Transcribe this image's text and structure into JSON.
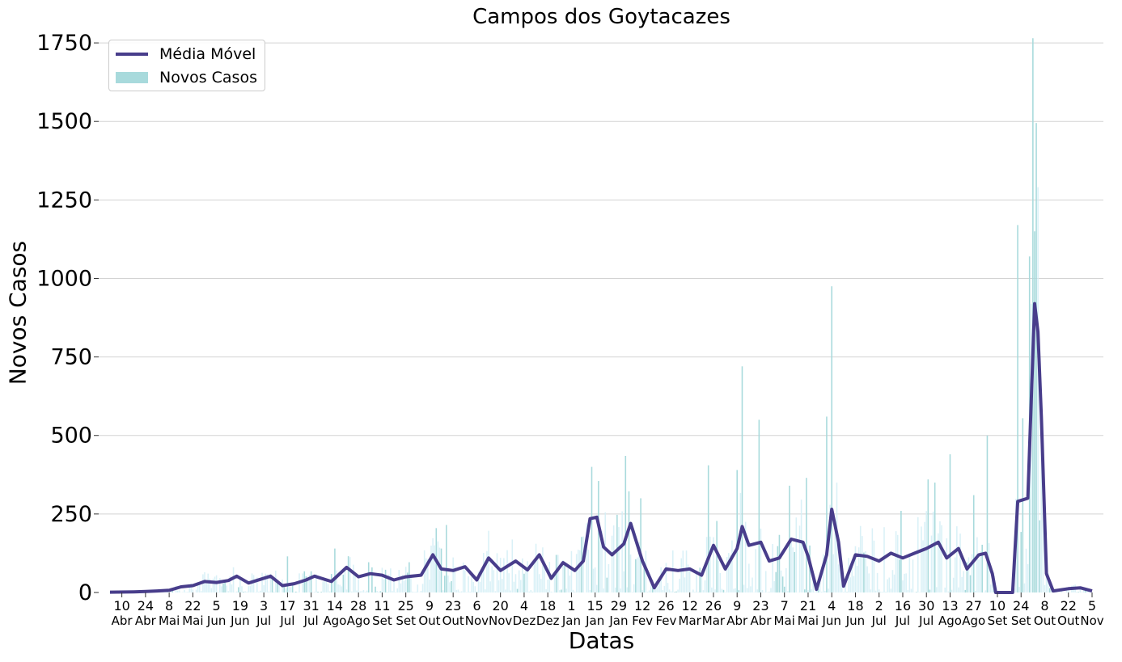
{
  "chart_data": {
    "type": "bar",
    "title": "Campos dos Goytacazes",
    "xlabel": "Datas",
    "ylabel": "Novos Casos",
    "ylim": [
      0,
      1830
    ],
    "yticks": [
      0,
      250,
      500,
      750,
      1000,
      1250,
      1500,
      1750
    ],
    "grid": "y",
    "legend_position": "top-left",
    "x_start": "2020-04-03",
    "x_end": "2021-11-05",
    "x_ticks": [
      {
        "date": "2020-04-10",
        "day": "10",
        "month": "Abr"
      },
      {
        "date": "2020-04-24",
        "day": "24",
        "month": "Abr"
      },
      {
        "date": "2020-05-08",
        "day": "8",
        "month": "Mai"
      },
      {
        "date": "2020-05-22",
        "day": "22",
        "month": "Mai"
      },
      {
        "date": "2020-06-05",
        "day": "5",
        "month": "Jun"
      },
      {
        "date": "2020-06-19",
        "day": "19",
        "month": "Jun"
      },
      {
        "date": "2020-07-03",
        "day": "3",
        "month": "Jul"
      },
      {
        "date": "2020-07-17",
        "day": "17",
        "month": "Jul"
      },
      {
        "date": "2020-07-31",
        "day": "31",
        "month": "Jul"
      },
      {
        "date": "2020-08-14",
        "day": "14",
        "month": "Ago"
      },
      {
        "date": "2020-08-28",
        "day": "28",
        "month": "Ago"
      },
      {
        "date": "2020-09-11",
        "day": "11",
        "month": "Set"
      },
      {
        "date": "2020-09-25",
        "day": "25",
        "month": "Set"
      },
      {
        "date": "2020-10-09",
        "day": "9",
        "month": "Out"
      },
      {
        "date": "2020-10-23",
        "day": "23",
        "month": "Out"
      },
      {
        "date": "2020-11-06",
        "day": "6",
        "month": "Nov"
      },
      {
        "date": "2020-11-20",
        "day": "20",
        "month": "Nov"
      },
      {
        "date": "2020-12-04",
        "day": "4",
        "month": "Dez"
      },
      {
        "date": "2020-12-18",
        "day": "18",
        "month": "Dez"
      },
      {
        "date": "2021-01-01",
        "day": "1",
        "month": "Jan"
      },
      {
        "date": "2021-01-15",
        "day": "15",
        "month": "Jan"
      },
      {
        "date": "2021-01-29",
        "day": "29",
        "month": "Jan"
      },
      {
        "date": "2021-02-12",
        "day": "12",
        "month": "Fev"
      },
      {
        "date": "2021-02-26",
        "day": "26",
        "month": "Fev"
      },
      {
        "date": "2021-03-12",
        "day": "12",
        "month": "Mar"
      },
      {
        "date": "2021-03-26",
        "day": "26",
        "month": "Mar"
      },
      {
        "date": "2021-04-09",
        "day": "9",
        "month": "Abr"
      },
      {
        "date": "2021-04-23",
        "day": "23",
        "month": "Abr"
      },
      {
        "date": "2021-05-07",
        "day": "7",
        "month": "Mai"
      },
      {
        "date": "2021-05-21",
        "day": "21",
        "month": "Mai"
      },
      {
        "date": "2021-06-04",
        "day": "4",
        "month": "Jun"
      },
      {
        "date": "2021-06-18",
        "day": "18",
        "month": "Jun"
      },
      {
        "date": "2021-07-02",
        "day": "2",
        "month": "Jul"
      },
      {
        "date": "2021-07-16",
        "day": "16",
        "month": "Jul"
      },
      {
        "date": "2021-07-30",
        "day": "30",
        "month": "Jul"
      },
      {
        "date": "2021-08-13",
        "day": "13",
        "month": "Ago"
      },
      {
        "date": "2021-08-27",
        "day": "27",
        "month": "Ago"
      },
      {
        "date": "2021-09-10",
        "day": "10",
        "month": "Set"
      },
      {
        "date": "2021-09-24",
        "day": "24",
        "month": "Set"
      },
      {
        "date": "2021-10-08",
        "day": "8",
        "month": "Out"
      },
      {
        "date": "2021-10-22",
        "day": "22",
        "month": "Out"
      },
      {
        "date": "2021-11-05",
        "day": "5",
        "month": "Nov"
      }
    ],
    "series": [
      {
        "name": "Média Móvel",
        "type": "line",
        "color": "#483d8b",
        "points": [
          [
            "2020-04-03",
            1
          ],
          [
            "2020-04-17",
            2
          ],
          [
            "2020-04-24",
            3
          ],
          [
            "2020-05-01",
            5
          ],
          [
            "2020-05-08",
            7
          ],
          [
            "2020-05-15",
            18
          ],
          [
            "2020-05-22",
            22
          ],
          [
            "2020-05-29",
            35
          ],
          [
            "2020-06-05",
            32
          ],
          [
            "2020-06-12",
            38
          ],
          [
            "2020-06-17",
            52
          ],
          [
            "2020-06-24",
            30
          ],
          [
            "2020-07-01",
            42
          ],
          [
            "2020-07-07",
            52
          ],
          [
            "2020-07-14",
            22
          ],
          [
            "2020-07-21",
            28
          ],
          [
            "2020-07-28",
            40
          ],
          [
            "2020-08-02",
            52
          ],
          [
            "2020-08-12",
            35
          ],
          [
            "2020-08-21",
            80
          ],
          [
            "2020-08-28",
            50
          ],
          [
            "2020-09-04",
            60
          ],
          [
            "2020-09-11",
            55
          ],
          [
            "2020-09-18",
            40
          ],
          [
            "2020-09-25",
            50
          ],
          [
            "2020-10-04",
            55
          ],
          [
            "2020-10-11",
            120
          ],
          [
            "2020-10-16",
            75
          ],
          [
            "2020-10-23",
            70
          ],
          [
            "2020-10-30",
            82
          ],
          [
            "2020-11-06",
            40
          ],
          [
            "2020-11-13",
            110
          ],
          [
            "2020-11-20",
            70
          ],
          [
            "2020-11-29",
            100
          ],
          [
            "2020-12-06",
            72
          ],
          [
            "2020-12-13",
            120
          ],
          [
            "2020-12-20",
            45
          ],
          [
            "2020-12-27",
            95
          ],
          [
            "2021-01-03",
            70
          ],
          [
            "2021-01-08",
            100
          ],
          [
            "2021-01-12",
            235
          ],
          [
            "2021-01-16",
            240
          ],
          [
            "2021-01-20",
            145
          ],
          [
            "2021-01-25",
            120
          ],
          [
            "2021-02-01",
            155
          ],
          [
            "2021-02-05",
            220
          ],
          [
            "2021-02-12",
            100
          ],
          [
            "2021-02-19",
            15
          ],
          [
            "2021-02-26",
            75
          ],
          [
            "2021-03-05",
            70
          ],
          [
            "2021-03-12",
            75
          ],
          [
            "2021-03-19",
            55
          ],
          [
            "2021-03-26",
            150
          ],
          [
            "2021-04-02",
            75
          ],
          [
            "2021-04-09",
            140
          ],
          [
            "2021-04-12",
            210
          ],
          [
            "2021-04-16",
            150
          ],
          [
            "2021-04-23",
            160
          ],
          [
            "2021-04-28",
            100
          ],
          [
            "2021-05-04",
            110
          ],
          [
            "2021-05-11",
            170
          ],
          [
            "2021-05-18",
            160
          ],
          [
            "2021-05-21",
            115
          ],
          [
            "2021-05-26",
            10
          ],
          [
            "2021-06-01",
            120
          ],
          [
            "2021-06-04",
            265
          ],
          [
            "2021-06-08",
            160
          ],
          [
            "2021-06-11",
            20
          ],
          [
            "2021-06-18",
            120
          ],
          [
            "2021-06-25",
            115
          ],
          [
            "2021-07-02",
            100
          ],
          [
            "2021-07-09",
            125
          ],
          [
            "2021-07-16",
            110
          ],
          [
            "2021-07-23",
            125
          ],
          [
            "2021-07-30",
            140
          ],
          [
            "2021-08-06",
            160
          ],
          [
            "2021-08-11",
            110
          ],
          [
            "2021-08-18",
            140
          ],
          [
            "2021-08-23",
            75
          ],
          [
            "2021-08-30",
            120
          ],
          [
            "2021-09-03",
            125
          ],
          [
            "2021-09-07",
            60
          ],
          [
            "2021-09-09",
            0
          ],
          [
            "2021-09-19",
            0
          ],
          [
            "2021-09-22",
            290
          ],
          [
            "2021-09-28",
            300
          ],
          [
            "2021-10-02",
            920
          ],
          [
            "2021-10-04",
            830
          ],
          [
            "2021-10-06",
            560
          ],
          [
            "2021-10-09",
            60
          ],
          [
            "2021-10-13",
            5
          ],
          [
            "2021-10-22",
            12
          ],
          [
            "2021-10-29",
            15
          ],
          [
            "2021-11-05",
            5
          ]
        ]
      },
      {
        "name": "Novos Casos",
        "type": "bar",
        "color": "#a8dadc",
        "highlight_points": [
          [
            "2020-08-14",
            140
          ],
          [
            "2020-07-17",
            115
          ],
          [
            "2020-10-13",
            205
          ],
          [
            "2020-10-19",
            215
          ],
          [
            "2021-01-13",
            400
          ],
          [
            "2021-01-17",
            355
          ],
          [
            "2021-02-02",
            435
          ],
          [
            "2021-02-11",
            300
          ],
          [
            "2021-03-23",
            405
          ],
          [
            "2021-04-09",
            390
          ],
          [
            "2021-04-12",
            720
          ],
          [
            "2021-04-22",
            550
          ],
          [
            "2021-05-10",
            340
          ],
          [
            "2021-05-20",
            365
          ],
          [
            "2021-06-01",
            560
          ],
          [
            "2021-06-04",
            975
          ],
          [
            "2021-07-15",
            260
          ],
          [
            "2021-07-31",
            360
          ],
          [
            "2021-08-04",
            350
          ],
          [
            "2021-08-13",
            440
          ],
          [
            "2021-08-27",
            310
          ],
          [
            "2021-09-04",
            500
          ],
          [
            "2021-09-22",
            1170
          ],
          [
            "2021-09-25",
            555
          ],
          [
            "2021-09-29",
            1070
          ],
          [
            "2021-10-01",
            1765
          ],
          [
            "2021-10-02",
            1150
          ],
          [
            "2021-10-03",
            1495
          ],
          [
            "2021-10-05",
            230
          ]
        ]
      }
    ]
  }
}
